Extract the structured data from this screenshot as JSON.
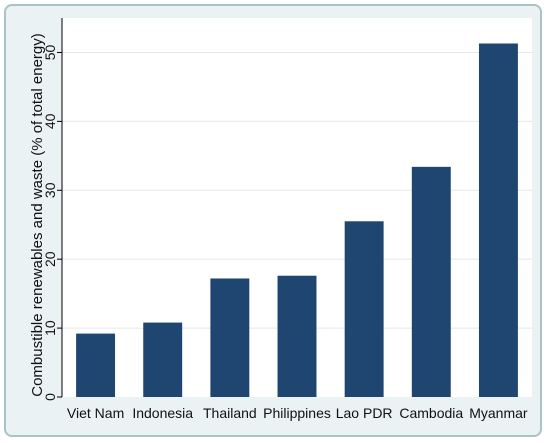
{
  "chart_data": {
    "type": "bar",
    "title": "",
    "xlabel": "",
    "ylabel": "Combustible renewables and waste (% of total energy)",
    "categories": [
      "Viet Nam",
      "Indonesia",
      "Thailand",
      "Philippines",
      "Lao PDR",
      "Cambodia",
      "Myanmar"
    ],
    "values": [
      9.2,
      10.8,
      17.2,
      17.6,
      25.5,
      33.4,
      51.3
    ],
    "ylim": [
      0,
      55
    ],
    "yticks": [
      "0",
      "10",
      "20",
      "30",
      "40",
      "50"
    ],
    "bar_color": "#1f4670",
    "grid": true,
    "legend": "none"
  }
}
